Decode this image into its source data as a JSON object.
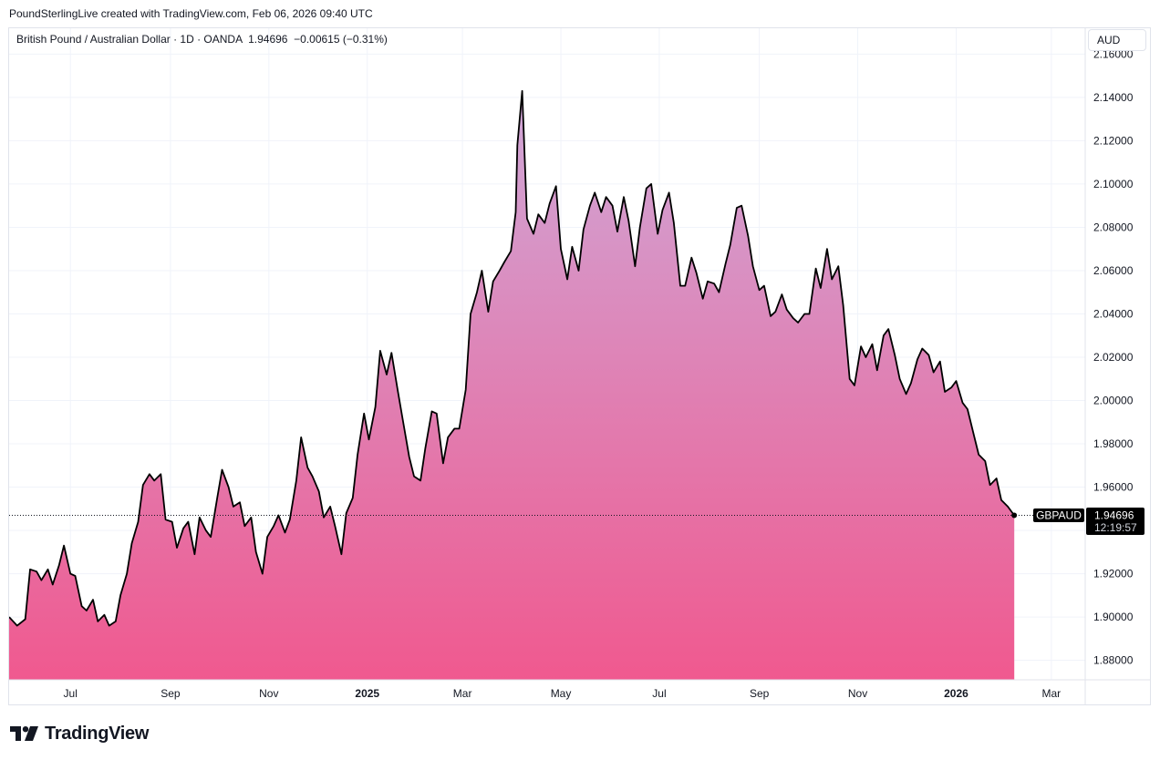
{
  "header": {
    "credit": "PoundSterlingLive created with TradingView.com, Feb 06, 2026 09:40 UTC",
    "legend": "British Pound / Australian Dollar · 1D · OANDA  1.94696  −0.00615 (−0.31%)",
    "currency": "AUD"
  },
  "footer": {
    "brand": "TradingView",
    "logo_icon": "tradingview-logo-icon"
  },
  "colors": {
    "line": "#000000",
    "area_top": "#cfa8d8",
    "area_bottom": "#f0598f",
    "grid": "#f0f3fa",
    "label_bg": "#000000",
    "label_text": "#ffffff"
  },
  "chart_data": {
    "type": "area",
    "symbol": "GBPAUD",
    "last_value": "1.94696",
    "last_time": "12:19:57",
    "ylim": [
      1.871,
      2.161
    ],
    "yticks": [
      1.88,
      1.9,
      1.92,
      1.94,
      1.96,
      1.98,
      2.0,
      2.02,
      2.04,
      2.06,
      2.08,
      2.1,
      2.12,
      2.14,
      2.16
    ],
    "ytick_labels": [
      "1.88000",
      "1.90000",
      "1.92000",
      "1.94000",
      "1.96000",
      "1.98000",
      "2.00000",
      "2.02000",
      "2.04000",
      "2.06000",
      "2.08000",
      "2.10000",
      "2.12000",
      "2.14000",
      "2.16000"
    ],
    "x_start": "2024-05-24",
    "x_end": "2026-03-22",
    "xticks": [
      {
        "date": "2024-07-01",
        "label": "Jul",
        "bold": false
      },
      {
        "date": "2024-09-01",
        "label": "Sep",
        "bold": false
      },
      {
        "date": "2024-11-01",
        "label": "Nov",
        "bold": false
      },
      {
        "date": "2025-01-01",
        "label": "2025",
        "bold": true
      },
      {
        "date": "2025-03-01",
        "label": "Mar",
        "bold": false
      },
      {
        "date": "2025-05-01",
        "label": "May",
        "bold": false
      },
      {
        "date": "2025-07-01",
        "label": "Jul",
        "bold": false
      },
      {
        "date": "2025-09-01",
        "label": "Sep",
        "bold": false
      },
      {
        "date": "2025-11-01",
        "label": "Nov",
        "bold": false
      },
      {
        "date": "2026-01-01",
        "label": "2026",
        "bold": true
      },
      {
        "date": "2026-03-01",
        "label": "Mar",
        "bold": false
      }
    ],
    "series": [
      {
        "points": [
          [
            "2024-05-24",
            1.9
          ],
          [
            "2024-05-29",
            1.896
          ],
          [
            "2024-06-03",
            1.899
          ],
          [
            "2024-06-06",
            1.922
          ],
          [
            "2024-06-10",
            1.921
          ],
          [
            "2024-06-13",
            1.917
          ],
          [
            "2024-06-17",
            1.922
          ],
          [
            "2024-06-20",
            1.915
          ],
          [
            "2024-06-24",
            1.924
          ],
          [
            "2024-06-27",
            1.933
          ],
          [
            "2024-07-01",
            1.92
          ],
          [
            "2024-07-04",
            1.919
          ],
          [
            "2024-07-08",
            1.905
          ],
          [
            "2024-07-11",
            1.903
          ],
          [
            "2024-07-15",
            1.908
          ],
          [
            "2024-07-18",
            1.898
          ],
          [
            "2024-07-22",
            1.901
          ],
          [
            "2024-07-25",
            1.896
          ],
          [
            "2024-07-29",
            1.898
          ],
          [
            "2024-08-01",
            1.91
          ],
          [
            "2024-08-05",
            1.92
          ],
          [
            "2024-08-08",
            1.934
          ],
          [
            "2024-08-12",
            1.944
          ],
          [
            "2024-08-15",
            1.961
          ],
          [
            "2024-08-19",
            1.966
          ],
          [
            "2024-08-22",
            1.963
          ],
          [
            "2024-08-26",
            1.966
          ],
          [
            "2024-08-29",
            1.945
          ],
          [
            "2024-09-02",
            1.944
          ],
          [
            "2024-09-05",
            1.932
          ],
          [
            "2024-09-09",
            1.941
          ],
          [
            "2024-09-12",
            1.944
          ],
          [
            "2024-09-16",
            1.929
          ],
          [
            "2024-09-19",
            1.946
          ],
          [
            "2024-09-23",
            1.94
          ],
          [
            "2024-09-26",
            1.937
          ],
          [
            "2024-09-30",
            1.955
          ],
          [
            "2024-10-03",
            1.968
          ],
          [
            "2024-10-07",
            1.96
          ],
          [
            "2024-10-10",
            1.951
          ],
          [
            "2024-10-14",
            1.953
          ],
          [
            "2024-10-17",
            1.942
          ],
          [
            "2024-10-21",
            1.946
          ],
          [
            "2024-10-24",
            1.93
          ],
          [
            "2024-10-28",
            1.92
          ],
          [
            "2024-10-31",
            1.937
          ],
          [
            "2024-11-04",
            1.942
          ],
          [
            "2024-11-07",
            1.947
          ],
          [
            "2024-11-11",
            1.939
          ],
          [
            "2024-11-14",
            1.945
          ],
          [
            "2024-11-18",
            1.963
          ],
          [
            "2024-11-21",
            1.983
          ],
          [
            "2024-11-25",
            1.969
          ],
          [
            "2024-11-28",
            1.965
          ],
          [
            "2024-12-02",
            1.958
          ],
          [
            "2024-12-05",
            1.946
          ],
          [
            "2024-12-09",
            1.951
          ],
          [
            "2024-12-12",
            1.942
          ],
          [
            "2024-12-16",
            1.929
          ],
          [
            "2024-12-19",
            1.948
          ],
          [
            "2024-12-23",
            1.955
          ],
          [
            "2024-12-26",
            1.975
          ],
          [
            "2024-12-30",
            1.994
          ],
          [
            "2025-01-02",
            1.982
          ],
          [
            "2025-01-06",
            1.997
          ],
          [
            "2025-01-09",
            2.023
          ],
          [
            "2025-01-13",
            2.012
          ],
          [
            "2025-01-16",
            2.022
          ],
          [
            "2025-01-20",
            2.004
          ],
          [
            "2025-01-23",
            1.991
          ],
          [
            "2025-01-27",
            1.974
          ],
          [
            "2025-01-30",
            1.965
          ],
          [
            "2025-02-03",
            1.963
          ],
          [
            "2025-02-06",
            1.978
          ],
          [
            "2025-02-10",
            1.995
          ],
          [
            "2025-02-13",
            1.994
          ],
          [
            "2025-02-17",
            1.971
          ],
          [
            "2025-02-20",
            1.983
          ],
          [
            "2025-02-24",
            1.987
          ],
          [
            "2025-02-27",
            1.987
          ],
          [
            "2025-03-03",
            2.005
          ],
          [
            "2025-03-06",
            2.04
          ],
          [
            "2025-03-10",
            2.05
          ],
          [
            "2025-03-13",
            2.06
          ],
          [
            "2025-03-17",
            2.041
          ],
          [
            "2025-03-20",
            2.055
          ],
          [
            "2025-03-24",
            2.06
          ],
          [
            "2025-03-27",
            2.064
          ],
          [
            "2025-03-31",
            2.069
          ],
          [
            "2025-04-03",
            2.087
          ],
          [
            "2025-04-04",
            2.118
          ],
          [
            "2025-04-07",
            2.143
          ],
          [
            "2025-04-10",
            2.084
          ],
          [
            "2025-04-14",
            2.077
          ],
          [
            "2025-04-17",
            2.086
          ],
          [
            "2025-04-21",
            2.082
          ],
          [
            "2025-04-24",
            2.091
          ],
          [
            "2025-04-28",
            2.099
          ],
          [
            "2025-05-01",
            2.07
          ],
          [
            "2025-05-05",
            2.056
          ],
          [
            "2025-05-08",
            2.071
          ],
          [
            "2025-05-12",
            2.06
          ],
          [
            "2025-05-15",
            2.079
          ],
          [
            "2025-05-19",
            2.09
          ],
          [
            "2025-05-22",
            2.096
          ],
          [
            "2025-05-26",
            2.087
          ],
          [
            "2025-05-29",
            2.094
          ],
          [
            "2025-06-02",
            2.09
          ],
          [
            "2025-06-05",
            2.078
          ],
          [
            "2025-06-09",
            2.094
          ],
          [
            "2025-06-12",
            2.083
          ],
          [
            "2025-06-16",
            2.062
          ],
          [
            "2025-06-19",
            2.08
          ],
          [
            "2025-06-23",
            2.098
          ],
          [
            "2025-06-26",
            2.1
          ],
          [
            "2025-06-30",
            2.077
          ],
          [
            "2025-07-03",
            2.088
          ],
          [
            "2025-07-07",
            2.096
          ],
          [
            "2025-07-10",
            2.082
          ],
          [
            "2025-07-14",
            2.053
          ],
          [
            "2025-07-17",
            2.053
          ],
          [
            "2025-07-21",
            2.066
          ],
          [
            "2025-07-24",
            2.059
          ],
          [
            "2025-07-28",
            2.047
          ],
          [
            "2025-07-31",
            2.055
          ],
          [
            "2025-08-04",
            2.054
          ],
          [
            "2025-08-07",
            2.05
          ],
          [
            "2025-08-11",
            2.063
          ],
          [
            "2025-08-14",
            2.072
          ],
          [
            "2025-08-18",
            2.089
          ],
          [
            "2025-08-21",
            2.09
          ],
          [
            "2025-08-25",
            2.076
          ],
          [
            "2025-08-28",
            2.062
          ],
          [
            "2025-09-01",
            2.051
          ],
          [
            "2025-09-04",
            2.053
          ],
          [
            "2025-09-08",
            2.039
          ],
          [
            "2025-09-11",
            2.041
          ],
          [
            "2025-09-15",
            2.049
          ],
          [
            "2025-09-18",
            2.042
          ],
          [
            "2025-09-22",
            2.038
          ],
          [
            "2025-09-25",
            2.036
          ],
          [
            "2025-09-29",
            2.04
          ],
          [
            "2025-10-02",
            2.04
          ],
          [
            "2025-10-06",
            2.061
          ],
          [
            "2025-10-09",
            2.052
          ],
          [
            "2025-10-13",
            2.07
          ],
          [
            "2025-10-16",
            2.056
          ],
          [
            "2025-10-20",
            2.062
          ],
          [
            "2025-10-23",
            2.044
          ],
          [
            "2025-10-27",
            2.01
          ],
          [
            "2025-10-30",
            2.007
          ],
          [
            "2025-11-03",
            2.025
          ],
          [
            "2025-11-06",
            2.02
          ],
          [
            "2025-11-10",
            2.026
          ],
          [
            "2025-11-13",
            2.014
          ],
          [
            "2025-11-17",
            2.03
          ],
          [
            "2025-11-20",
            2.033
          ],
          [
            "2025-11-24",
            2.021
          ],
          [
            "2025-11-27",
            2.01
          ],
          [
            "2025-12-01",
            2.003
          ],
          [
            "2025-12-04",
            2.008
          ],
          [
            "2025-12-08",
            2.019
          ],
          [
            "2025-12-11",
            2.024
          ],
          [
            "2025-12-15",
            2.021
          ],
          [
            "2025-12-18",
            2.013
          ],
          [
            "2025-12-22",
            2.018
          ],
          [
            "2025-12-25",
            2.004
          ],
          [
            "2025-12-29",
            2.006
          ],
          [
            "2026-01-01",
            2.009
          ],
          [
            "2026-01-05",
            1.999
          ],
          [
            "2026-01-08",
            1.996
          ],
          [
            "2026-01-12",
            1.984
          ],
          [
            "2026-01-15",
            1.975
          ],
          [
            "2026-01-19",
            1.972
          ],
          [
            "2026-01-22",
            1.961
          ],
          [
            "2026-01-26",
            1.964
          ],
          [
            "2026-01-29",
            1.954
          ],
          [
            "2026-02-02",
            1.951
          ],
          [
            "2026-02-06",
            1.94696
          ]
        ]
      }
    ]
  }
}
